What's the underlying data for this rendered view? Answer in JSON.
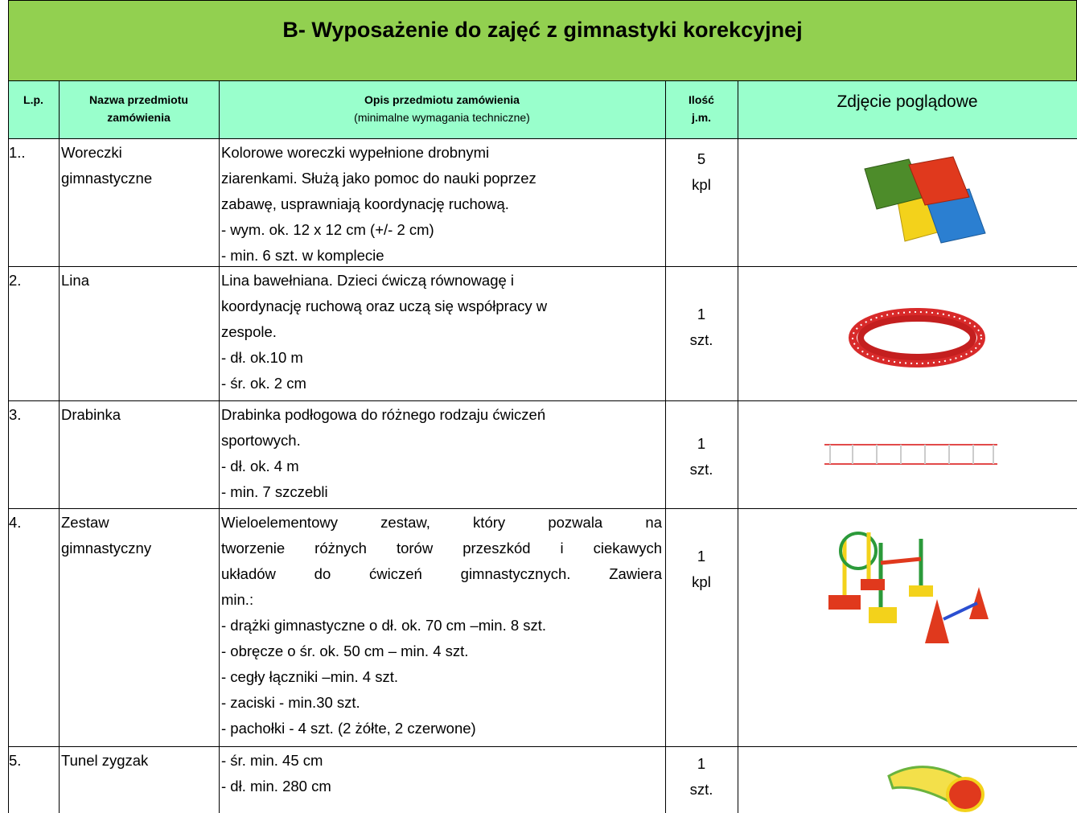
{
  "title": "B- Wyposażenie do zajęć z gimnastyki korekcyjnej",
  "table": {
    "header": {
      "lp": "L.p.",
      "name": [
        "Nazwa przedmiotu",
        "zamówienia"
      ],
      "description": [
        "Opis przedmiotu zamówienia",
        "(minimalne wymagania techniczne)"
      ],
      "quantity": [
        "Ilość",
        "j.m."
      ],
      "photo": "Zdjęcie poglądowe"
    },
    "rows": [
      {
        "lp": "1..",
        "name": [
          "Woreczki",
          "gimnastyczne"
        ],
        "description": [
          "Kolorowe woreczki wypełnione drobnymi",
          "ziarenkami. Służą jako pomoc do nauki poprzez",
          "zabawę, usprawniają koordynację ruchową.",
          "-  wym. ok. 12 x 12 cm (+/- 2 cm)",
          "- min. 6  szt. w komplecie"
        ],
        "amount": 5,
        "unit": "kpl"
      },
      {
        "lp": "2.",
        "name": [
          "Lina"
        ],
        "description": [
          "Lina bawełniana. Dzieci ćwiczą równowagę i",
          "koordynację ruchową oraz uczą się współpracy w",
          "zespole.",
          "-  dł. ok.10 m",
          "-  śr. ok. 2 cm"
        ],
        "amount": 1,
        "unit": "szt."
      },
      {
        "lp": "3.",
        "name": [
          "Drabinka"
        ],
        "description": [
          "Drabinka podłogowa do różnego rodzaju ćwiczeń",
          "sportowych.",
          "- dł. ok. 4 m",
          "- min. 7 szczebli"
        ],
        "amount": 1,
        "unit": "szt."
      },
      {
        "lp": "4.",
        "name": [
          "Zestaw",
          "gimnastyczny"
        ],
        "description": [
          "Wieloelementowy zestaw, który pozwala na",
          "tworzenie różnych torów przeszkód i ciekawych",
          "układów do ćwiczeń gimnastycznych. Zawiera",
          "min.:",
          "- drążki gimnastyczne o dł. ok. 70 cm –min.  8 szt.",
          "- obręcze o śr. ok. 50 cm – min. 4 szt.",
          "- cegły łączniki –min.  4 szt.",
          "- zaciski -  min.30 szt.",
          "- pachołki - 4 szt. (2 żółte, 2 czerwone)"
        ],
        "amount": 1,
        "unit": "kpl"
      },
      {
        "lp": "5.",
        "name": [
          "Tunel zygzak"
        ],
        "description": [
          "- śr. min. 45 cm",
          "- dł. min. 280 cm"
        ],
        "amount": 1,
        "unit": "szt."
      }
    ]
  }
}
